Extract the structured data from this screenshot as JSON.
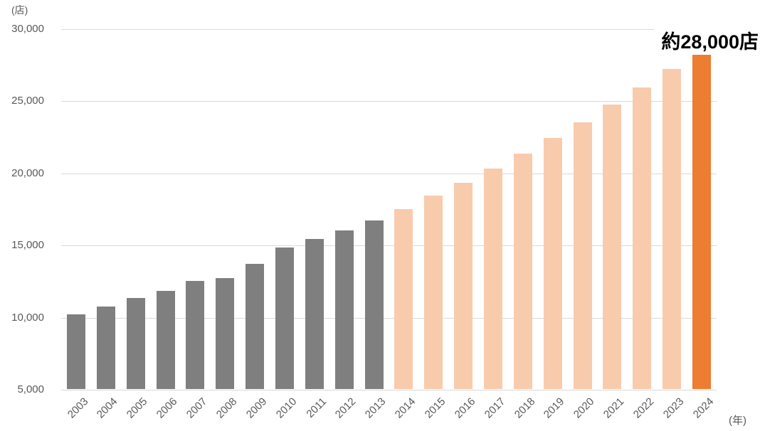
{
  "chart_data": {
    "type": "bar",
    "title": "",
    "y_axis_unit": "(店)",
    "x_axis_unit": "(年)",
    "annotation": "約28,000店",
    "categories": [
      "2003",
      "2004",
      "2005",
      "2006",
      "2007",
      "2008",
      "2009",
      "2010",
      "2011",
      "2012",
      "2013",
      "2014",
      "2015",
      "2016",
      "2017",
      "2018",
      "2019",
      "2020",
      "2021",
      "2022",
      "2023",
      "2024"
    ],
    "values": [
      10200,
      10700,
      11300,
      11800,
      12500,
      12700,
      13700,
      14800,
      15400,
      16000,
      16700,
      17500,
      18400,
      19300,
      20300,
      21300,
      22400,
      23500,
      24700,
      25900,
      27200,
      28600
    ],
    "groups": [
      {
        "from": 2003,
        "to": 2013,
        "color": "#7f7f7f"
      },
      {
        "from": 2014,
        "to": 2023,
        "color": "#f8cbad"
      },
      {
        "from": 2024,
        "to": 2024,
        "color": "#ed7d31"
      }
    ],
    "ylim": [
      5000,
      30000
    ],
    "y_tick_labels": [
      "30,000",
      "25,000",
      "20,000",
      "15,000",
      "10,000",
      "5,000"
    ],
    "grid": true,
    "legend": "none",
    "colors": {
      "bars_2003_2013": "#7f7f7f",
      "bars_2014_2023": "#f8cbad",
      "bar_2024_highlight": "#ed7d31",
      "gridline": "#d9d9d9",
      "tick_text": "#595959",
      "annotation_text": "#000000"
    }
  }
}
